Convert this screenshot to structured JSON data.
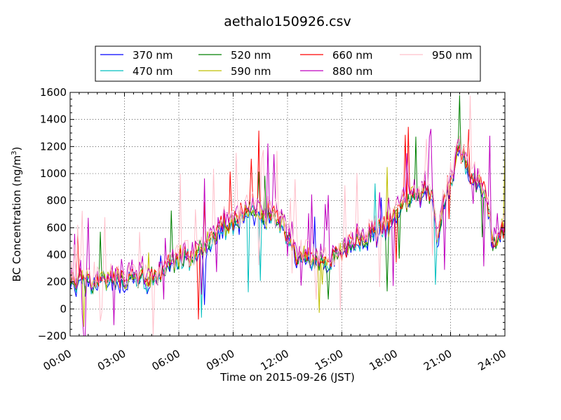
{
  "chart_data": {
    "type": "line",
    "title": "aethalo150926.csv",
    "xlabel": "Time on 2015-09-26 (JST)",
    "ylabel": "BC Concentration (ng/m",
    "ylabel_sup": "3",
    "ylabel_tail": ")",
    "xlim": [
      0,
      24
    ],
    "ylim": [
      -200,
      1600
    ],
    "x_ticks": [
      0,
      3,
      6,
      9,
      12,
      15,
      18,
      21,
      24
    ],
    "x_tick_labels": [
      "00:00",
      "03:00",
      "06:00",
      "09:00",
      "12:00",
      "15:00",
      "18:00",
      "21:00",
      "24:00"
    ],
    "y_ticks": [
      -200,
      0,
      200,
      400,
      600,
      800,
      1000,
      1200,
      1400,
      1600
    ],
    "y_tick_labels": [
      "−200",
      "0",
      "200",
      "400",
      "600",
      "800",
      "1000",
      "1200",
      "1400",
      "1600"
    ],
    "grid": true,
    "legend_position": "top-center",
    "x_unit": "hours (JST)",
    "baseline_anchors": {
      "x": [
        0,
        0.5,
        1,
        1.5,
        2,
        2.5,
        3,
        3.5,
        4,
        4.5,
        5,
        5.5,
        6,
        6.5,
        7,
        7.5,
        8,
        8.5,
        9,
        9.5,
        10,
        10.5,
        11,
        11.5,
        12,
        12.5,
        13,
        13.5,
        14,
        14.5,
        15,
        15.5,
        16,
        16.5,
        17,
        17.5,
        18,
        18.5,
        19,
        19.5,
        20,
        20.25,
        20.5,
        21,
        21.4,
        21.7,
        22,
        22.5,
        23,
        23.3,
        23.6,
        24
      ],
      "y": [
        180,
        200,
        210,
        190,
        200,
        210,
        200,
        220,
        230,
        210,
        230,
        320,
        360,
        380,
        410,
        450,
        560,
        600,
        620,
        700,
        720,
        650,
        700,
        680,
        560,
        380,
        400,
        350,
        330,
        350,
        420,
        480,
        500,
        520,
        560,
        600,
        700,
        800,
        830,
        850,
        880,
        520,
        700,
        950,
        1180,
        1150,
        1000,
        920,
        800,
        520,
        550,
        620
      ]
    },
    "series": [
      {
        "name": "370 nm",
        "color": "#0000ff",
        "noise": 45,
        "spike": 0.02,
        "offset": -30,
        "seed": 11
      },
      {
        "name": "470 nm",
        "color": "#00bfbf",
        "noise": 45,
        "spike": 0.02,
        "offset": -10,
        "seed": 23
      },
      {
        "name": "520 nm",
        "color": "#008000",
        "noise": 50,
        "spike": 0.03,
        "offset": 0,
        "seed": 37
      },
      {
        "name": "590 nm",
        "color": "#bfbf00",
        "noise": 50,
        "spike": 0.03,
        "offset": 10,
        "seed": 41
      },
      {
        "name": "660 nm",
        "color": "#ff0000",
        "noise": 55,
        "spike": 0.04,
        "offset": 20,
        "seed": 53
      },
      {
        "name": "880 nm",
        "color": "#bf00bf",
        "noise": 80,
        "spike": 0.08,
        "offset": 40,
        "seed": 67
      },
      {
        "name": "950 nm",
        "color": "#ffc0cb",
        "noise": 90,
        "spike": 0.09,
        "offset": 45,
        "seed": 79
      }
    ]
  }
}
